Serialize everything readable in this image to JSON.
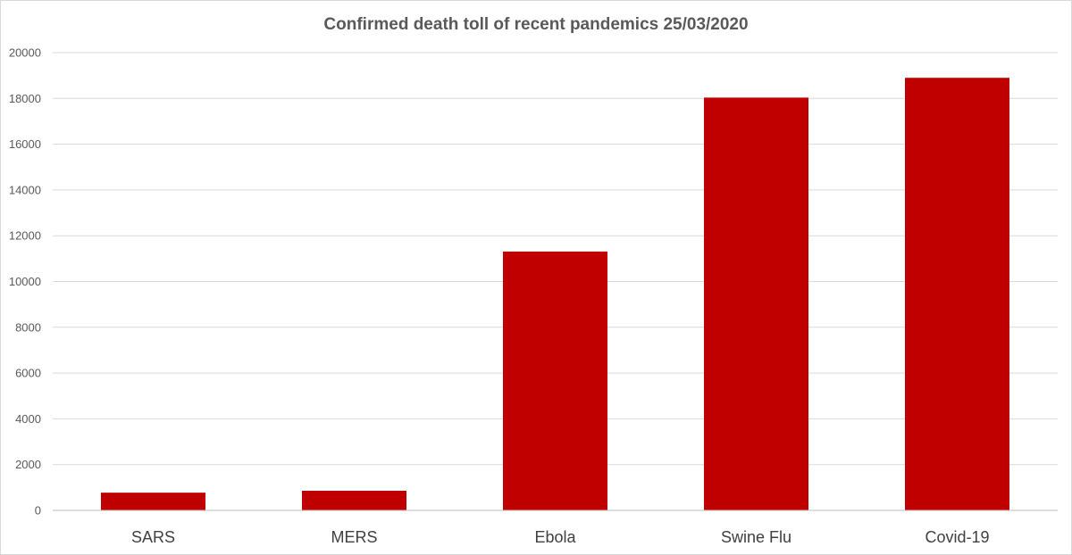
{
  "chart_data": {
    "type": "bar",
    "title": "Confirmed death toll of recent pandemics 25/03/2020",
    "categories": [
      "SARS",
      "MERS",
      "Ebola",
      "Swine Flu",
      "Covid-19"
    ],
    "values": [
      774,
      858,
      11310,
      18036,
      18900
    ],
    "ylim": [
      0,
      20000
    ],
    "yticks": [
      0,
      2000,
      4000,
      6000,
      8000,
      10000,
      12000,
      14000,
      16000,
      18000,
      20000
    ],
    "xlabel": "",
    "ylabel": "",
    "grid": true,
    "legend": "none",
    "bar_color": "#c00000"
  }
}
